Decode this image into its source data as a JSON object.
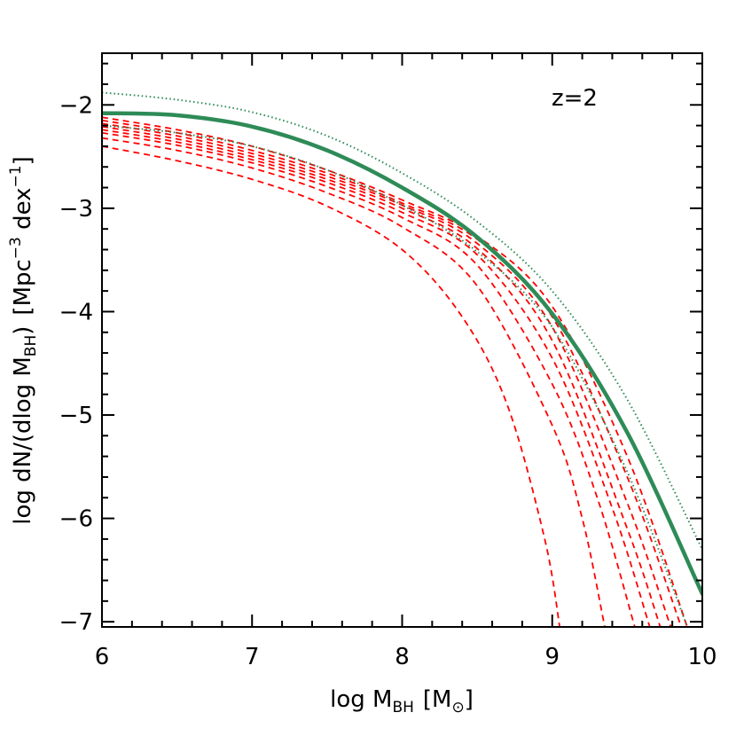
{
  "colors": {
    "model_line": "#2e8b57",
    "model_bounds": "#2e8b57",
    "dashed_curves": "#ff0000",
    "axes": "#000000"
  },
  "chart_data": {
    "type": "line",
    "title": "",
    "annotation": "z=2",
    "xlabel": "log M",
    "xlabel_sub": "BH",
    "xlabel_unit_open": "[M",
    "xlabel_unit_sub": "⊙",
    "xlabel_unit_close": "]",
    "ylabel": "log dN/(dlog M",
    "ylabel_sub": "BH",
    "ylabel_close": ")",
    "ylabel_unit_1": "[Mpc",
    "ylabel_unit_sup_1": "−3",
    "ylabel_unit_2": " dex",
    "ylabel_unit_sup_2": "−1",
    "ylabel_unit_3": "]",
    "xlim": [
      6,
      10
    ],
    "ylim": [
      -7.05,
      -1.5
    ],
    "x_ticks": [
      6,
      7,
      8,
      9,
      10
    ],
    "x_tick_labels": [
      "6",
      "7",
      "8",
      "9",
      "10"
    ],
    "y_ticks": [
      -7,
      -6,
      -5,
      -4,
      -3,
      -2
    ],
    "y_tick_labels": [
      "−7",
      "−6",
      "−5",
      "−4",
      "−3",
      "−2"
    ],
    "grid": false,
    "series": [
      {
        "style": "solid",
        "x": [
          6.0,
          6.5,
          7.0,
          7.5,
          8.0,
          8.5,
          9.0,
          9.5,
          10.0
        ],
        "y": [
          -2.08,
          -2.1,
          -2.21,
          -2.44,
          -2.8,
          -3.28,
          -4.02,
          -5.17,
          -6.73
        ]
      },
      {
        "style": "dotted",
        "x": [
          6.0,
          6.5,
          7.0,
          7.5,
          8.0,
          8.5,
          9.0,
          9.5,
          10.0
        ],
        "y": [
          -1.88,
          -1.95,
          -2.07,
          -2.3,
          -2.66,
          -3.13,
          -3.8,
          -4.85,
          -6.3
        ]
      },
      {
        "style": "dotted",
        "x": [
          6.0,
          6.5,
          7.0,
          7.5,
          8.0,
          8.5,
          9.0,
          9.5,
          9.9
        ],
        "y": [
          -2.2,
          -2.27,
          -2.4,
          -2.63,
          -2.97,
          -3.42,
          -4.15,
          -5.55,
          -7.05
        ]
      },
      {
        "style": "dashed",
        "x": [
          6.0,
          6.5,
          7.0,
          7.5,
          8.0,
          8.5,
          9.0,
          9.5,
          9.9
        ],
        "y": [
          -2.12,
          -2.24,
          -2.4,
          -2.63,
          -2.92,
          -3.27,
          -3.95,
          -5.4,
          -7.05
        ]
      },
      {
        "style": "dashed",
        "x": [
          6.0,
          6.5,
          7.0,
          7.5,
          8.0,
          8.5,
          9.0,
          9.5,
          9.86
        ],
        "y": [
          -2.15,
          -2.27,
          -2.44,
          -2.66,
          -2.95,
          -3.3,
          -4.05,
          -5.6,
          -7.05
        ]
      },
      {
        "style": "dashed",
        "x": [
          6.0,
          6.5,
          7.0,
          7.5,
          8.0,
          8.5,
          9.0,
          9.5,
          9.79
        ],
        "y": [
          -2.18,
          -2.3,
          -2.47,
          -2.69,
          -2.97,
          -3.34,
          -4.15,
          -5.85,
          -7.05
        ]
      },
      {
        "style": "dashed",
        "x": [
          6.0,
          6.5,
          7.0,
          7.5,
          8.0,
          8.5,
          9.0,
          9.5,
          9.72
        ],
        "y": [
          -2.21,
          -2.33,
          -2.5,
          -2.72,
          -3.0,
          -3.39,
          -4.28,
          -6.1,
          -7.05
        ]
      },
      {
        "style": "dashed",
        "x": [
          6.0,
          6.5,
          7.0,
          7.5,
          8.0,
          8.5,
          9.0,
          9.4,
          9.65
        ],
        "y": [
          -2.24,
          -2.36,
          -2.53,
          -2.75,
          -3.04,
          -3.45,
          -4.45,
          -5.9,
          -7.05
        ]
      },
      {
        "style": "dashed",
        "x": [
          6.0,
          6.5,
          7.0,
          7.5,
          8.0,
          8.5,
          9.0,
          9.3,
          9.55
        ],
        "y": [
          -2.27,
          -2.39,
          -2.56,
          -2.79,
          -3.09,
          -3.55,
          -4.7,
          -5.8,
          -7.05
        ]
      },
      {
        "style": "dashed",
        "x": [
          6.0,
          6.5,
          7.0,
          7.5,
          8.0,
          8.5,
          9.0,
          9.2,
          9.35
        ],
        "y": [
          -2.32,
          -2.44,
          -2.61,
          -2.85,
          -3.18,
          -3.75,
          -5.1,
          -6.0,
          -7.05
        ]
      },
      {
        "style": "dashed",
        "x": [
          6.0,
          6.5,
          7.0,
          7.5,
          8.0,
          8.4,
          8.7,
          8.95,
          9.05
        ],
        "y": [
          -2.4,
          -2.54,
          -2.72,
          -2.98,
          -3.4,
          -4.05,
          -4.9,
          -6.2,
          -7.05
        ]
      }
    ]
  }
}
